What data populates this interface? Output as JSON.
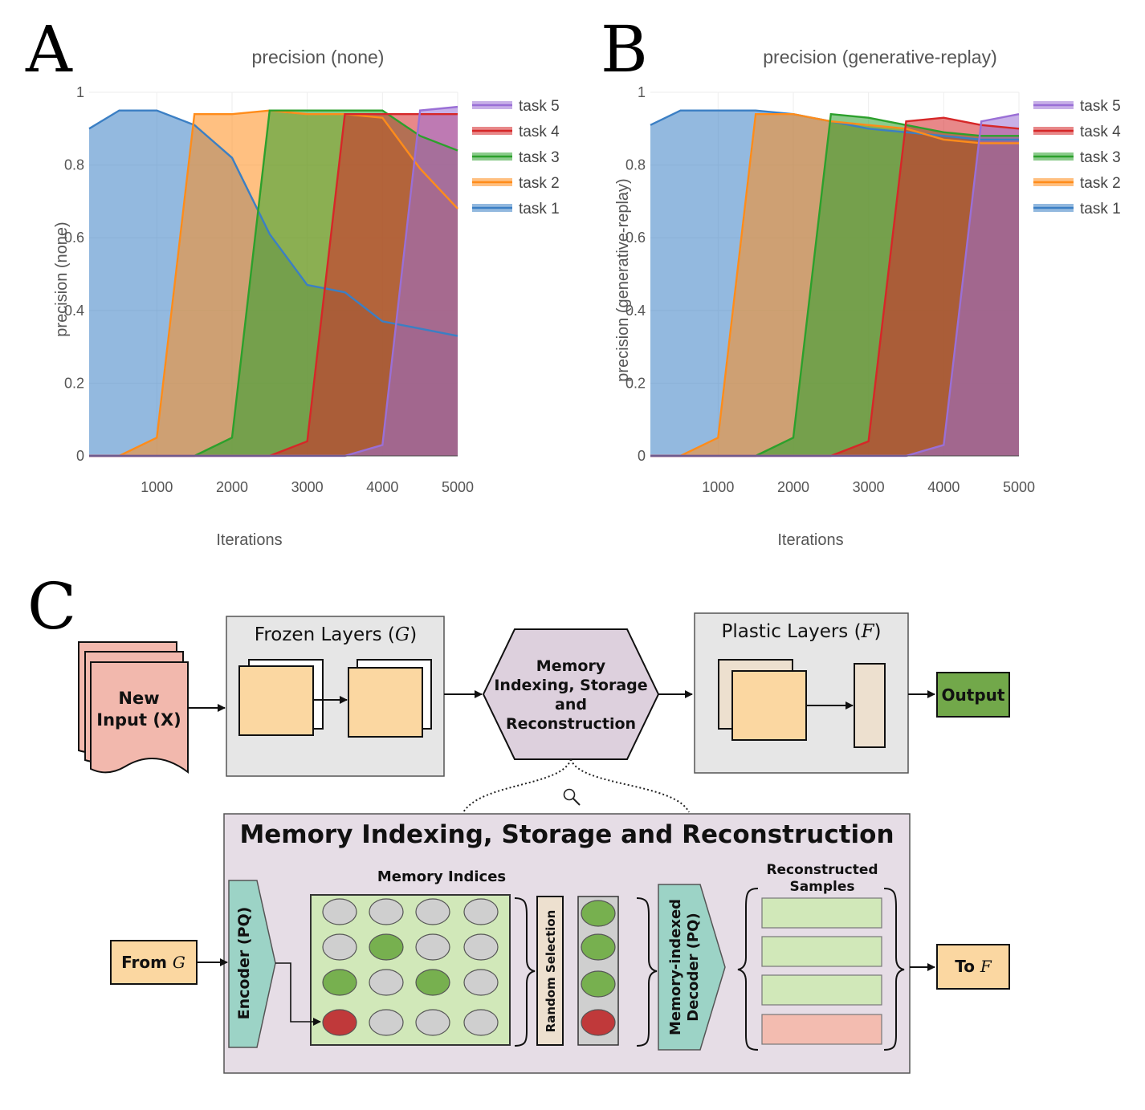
{
  "panels": {
    "a": "A",
    "b": "B",
    "c": "C"
  },
  "colors": {
    "task1": "#3b7fc4",
    "task2": "#ff8c1a",
    "task3": "#2ca02c",
    "task4": "#d62728",
    "task5": "#9a6fd6"
  },
  "chart_data": [
    {
      "type": "area",
      "title": "precision (none)",
      "xlabel": "Iterations",
      "ylabel": "precision (none)",
      "xlim": [
        100,
        5000
      ],
      "ylim": [
        0,
        1
      ],
      "x_ticks": [
        "1000",
        "2000",
        "3000",
        "4000",
        "5000"
      ],
      "y_ticks": [
        "0",
        "0.2",
        "0.4",
        "0.6",
        "0.8",
        "1"
      ],
      "legend_position": "top-right",
      "x": [
        100,
        500,
        1000,
        1500,
        2000,
        2500,
        3000,
        3500,
        4000,
        4500,
        5000
      ],
      "series": [
        {
          "name": "task 5",
          "values": [
            0,
            0,
            0,
            0,
            0,
            0,
            0,
            0,
            0.03,
            0.95,
            0.96
          ]
        },
        {
          "name": "task 4",
          "values": [
            0,
            0,
            0,
            0,
            0,
            0,
            0.04,
            0.94,
            0.94,
            0.94,
            0.94
          ]
        },
        {
          "name": "task 3",
          "values": [
            0,
            0,
            0,
            0,
            0.05,
            0.95,
            0.95,
            0.95,
            0.95,
            0.88,
            0.84
          ]
        },
        {
          "name": "task 2",
          "values": [
            0,
            0,
            0.05,
            0.94,
            0.94,
            0.95,
            0.94,
            0.94,
            0.93,
            0.79,
            0.68
          ]
        },
        {
          "name": "task 1",
          "values": [
            0.9,
            0.95,
            0.95,
            0.91,
            0.82,
            0.61,
            0.47,
            0.45,
            0.37,
            0.35,
            0.33
          ]
        }
      ]
    },
    {
      "type": "area",
      "title": "precision (generative-replay)",
      "xlabel": "Iterations",
      "ylabel": "precision (generative-replay)",
      "xlim": [
        100,
        5000
      ],
      "ylim": [
        0,
        1
      ],
      "x_ticks": [
        "1000",
        "2000",
        "3000",
        "4000",
        "5000"
      ],
      "y_ticks": [
        "0",
        "0.2",
        "0.4",
        "0.6",
        "0.8",
        "1"
      ],
      "legend_position": "top-right",
      "x": [
        100,
        500,
        1000,
        1500,
        2000,
        2500,
        3000,
        3500,
        4000,
        4500,
        5000
      ],
      "series": [
        {
          "name": "task 5",
          "values": [
            0,
            0,
            0,
            0,
            0,
            0,
            0,
            0,
            0.03,
            0.92,
            0.94
          ]
        },
        {
          "name": "task 4",
          "values": [
            0,
            0,
            0,
            0,
            0,
            0,
            0.04,
            0.92,
            0.93,
            0.91,
            0.9
          ]
        },
        {
          "name": "task 3",
          "values": [
            0,
            0,
            0,
            0,
            0.05,
            0.94,
            0.93,
            0.91,
            0.89,
            0.88,
            0.88
          ]
        },
        {
          "name": "task 2",
          "values": [
            0,
            0,
            0.05,
            0.94,
            0.94,
            0.92,
            0.91,
            0.9,
            0.87,
            0.86,
            0.86
          ]
        },
        {
          "name": "task 1",
          "values": [
            0.91,
            0.95,
            0.95,
            0.95,
            0.94,
            0.92,
            0.9,
            0.89,
            0.88,
            0.87,
            0.87
          ]
        }
      ]
    }
  ],
  "diagram": {
    "new_input": [
      "New",
      "Input (X)"
    ],
    "frozen_title": "Frozen Layers (",
    "frozen_sym": "G",
    "close_paren": ")",
    "memory_hex": [
      "Memory",
      "Indexing, Storage",
      "and",
      "Reconstruction"
    ],
    "plastic_title": "Plastic Layers (",
    "plastic_sym": "F",
    "output": "Output",
    "detail_title": "Memory Indexing, Storage and Reconstruction",
    "memory_indices": "Memory Indices",
    "reconstructed": [
      "Reconstructed",
      "Samples"
    ],
    "from_label": "From ",
    "from_sym": "G",
    "to_label": "To ",
    "to_sym": "F",
    "encoder": "Encoder (PQ)",
    "random_selection": "Random Selection",
    "decoder": [
      "Memory-indexed",
      "Decoder (PQ)"
    ],
    "magnifier_icon": "magnifier-icon",
    "grid": [
      [
        "gray",
        "gray",
        "gray",
        "gray"
      ],
      [
        "gray",
        "green",
        "gray",
        "gray"
      ],
      [
        "green",
        "gray",
        "green",
        "gray"
      ],
      [
        "red",
        "gray",
        "gray",
        "gray"
      ]
    ],
    "selected": [
      "green",
      "green",
      "green",
      "red"
    ],
    "samples": [
      "green",
      "green",
      "green",
      "red"
    ]
  }
}
